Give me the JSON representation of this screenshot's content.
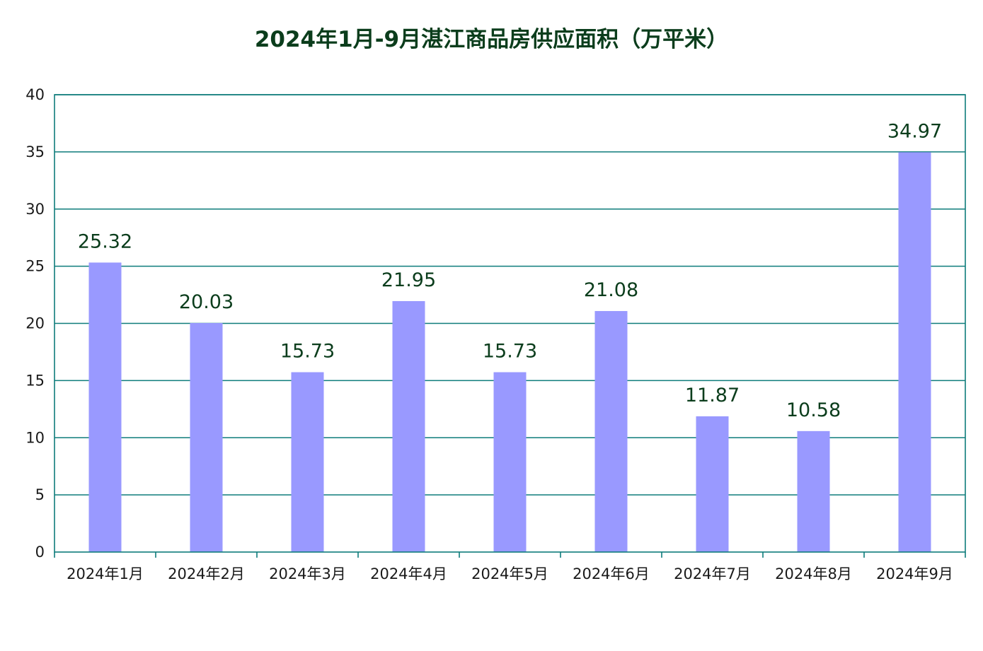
{
  "chart_data": {
    "type": "bar",
    "title": "2024年1月-9月湛江商品房供应面积（万平米）",
    "categories": [
      "2024年1月",
      "2024年2月",
      "2024年3月",
      "2024年4月",
      "2024年5月",
      "2024年6月",
      "2024年7月",
      "2024年8月",
      "2024年9月"
    ],
    "values": [
      25.32,
      20.03,
      15.73,
      21.95,
      15.73,
      21.08,
      11.87,
      10.58,
      34.97
    ],
    "value_labels": [
      "25.32",
      "20.03",
      "15.73",
      "21.95",
      "15.73",
      "21.08",
      "11.87",
      "10.58",
      "34.97"
    ],
    "ylim": [
      0,
      40
    ],
    "yticks": [
      "0",
      "5",
      "10",
      "15",
      "20",
      "25",
      "30",
      "35",
      "40"
    ],
    "grid": true,
    "colors": {
      "bar": "#9999ff",
      "grid": "#0e7c7b",
      "axis": "#0e7c7b",
      "title": "#0b3d1c"
    }
  }
}
